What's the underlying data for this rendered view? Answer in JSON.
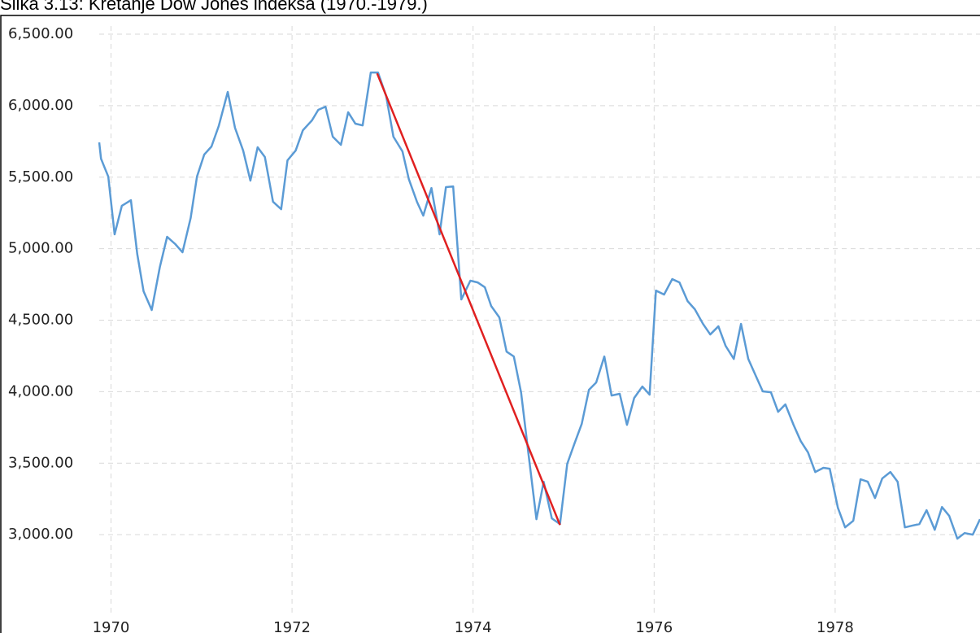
{
  "chart_data": {
    "type": "line",
    "title": "Slika 3.13: Kretanje Dow Jones indeksa (1970.-1979.)",
    "x": [
      1969.87,
      1969.89,
      1969.97,
      1970.04,
      1970.12,
      1970.22,
      1970.29,
      1970.36,
      1970.45,
      1970.54,
      1970.62,
      1970.71,
      1970.79,
      1970.88,
      1970.95,
      1971.03,
      1971.11,
      1971.19,
      1971.29,
      1971.37,
      1971.46,
      1971.54,
      1971.62,
      1971.7,
      1971.79,
      1971.88,
      1971.95,
      1972.04,
      1972.12,
      1972.22,
      1972.29,
      1972.37,
      1972.45,
      1972.54,
      1972.62,
      1972.7,
      1972.78,
      1972.87,
      1972.95,
      1973.04,
      1973.12,
      1973.22,
      1973.29,
      1973.38,
      1973.45,
      1973.54,
      1973.63,
      1973.7,
      1973.78,
      1973.87,
      1973.97,
      1974.05,
      1974.13,
      1974.2,
      1974.29,
      1974.37,
      1974.45,
      1974.53,
      1974.61,
      1974.7,
      1974.78,
      1974.87,
      1974.96,
      1975.04,
      1975.12,
      1975.2,
      1975.28,
      1975.36,
      1975.45,
      1975.53,
      1975.62,
      1975.7,
      1975.78,
      1975.87,
      1975.95,
      1976.02,
      1976.11,
      1976.2,
      1976.28,
      1976.37,
      1976.45,
      1976.54,
      1976.62,
      1976.71,
      1976.79,
      1976.88,
      1976.96,
      1977.04,
      1977.12,
      1977.2,
      1977.29,
      1977.37,
      1977.45,
      1977.54,
      1977.62,
      1977.7,
      1977.78,
      1977.87,
      1977.94,
      1978.03,
      1978.11,
      1978.2,
      1978.28,
      1978.36,
      1978.44,
      1978.52,
      1978.61,
      1978.69,
      1978.77,
      1978.85,
      1978.93,
      1979.01,
      1979.1,
      1979.18,
      1979.26,
      1979.35,
      1979.43,
      1979.52,
      1979.6
    ],
    "series": [
      {
        "color": "#5b9bd5",
        "values": [
          5743,
          5629,
          5504,
          5100,
          5300,
          5339,
          4963,
          4702,
          4571,
          4872,
          5083,
          5032,
          4975,
          5214,
          5504,
          5658,
          5714,
          5857,
          6096,
          5845,
          5686,
          5476,
          5709,
          5641,
          5328,
          5276,
          5618,
          5686,
          5828,
          5897,
          5971,
          5993,
          5783,
          5726,
          5954,
          5874,
          5862,
          6232,
          6232,
          6067,
          5783,
          5680,
          5487,
          5328,
          5231,
          5424,
          5100,
          5430,
          5435,
          4645,
          4776,
          4764,
          4730,
          4599,
          4519,
          4280,
          4246,
          3996,
          3575,
          3108,
          3370,
          3114,
          3074,
          3495,
          3637,
          3774,
          4013,
          4064,
          4246,
          3973,
          3985,
          3768,
          3956,
          4036,
          3979,
          4707,
          4679,
          4787,
          4764,
          4633,
          4576,
          4474,
          4400,
          4457,
          4320,
          4229,
          4474,
          4229,
          4115,
          4002,
          3996,
          3859,
          3911,
          3768,
          3654,
          3575,
          3438,
          3467,
          3461,
          3188,
          3051,
          3097,
          3387,
          3370,
          3256,
          3393,
          3438,
          3370,
          3051,
          3063,
          3074,
          3171,
          3034,
          3193,
          3131,
          2972,
          3011,
          3000,
          3108
        ]
      }
    ],
    "trend_line": {
      "color": "#e02020",
      "x": [
        1972.94,
        1974.96
      ],
      "values": [
        6226,
        3068
      ]
    },
    "xlim": [
      1969.87,
      1979.6
    ],
    "xticks": [
      1970,
      1972,
      1974,
      1976,
      1978
    ],
    "ylim": [
      2500,
      6500
    ],
    "yticks": [
      {
        "value": 3000,
        "label": "3,000.00"
      },
      {
        "value": 3500,
        "label": "3,500.00"
      },
      {
        "value": 4000,
        "label": "4,000.00"
      },
      {
        "value": 4500,
        "label": "4,500.00"
      },
      {
        "value": 5000,
        "label": "5,000.00"
      },
      {
        "value": 5500,
        "label": "5,500.00"
      },
      {
        "value": 6000,
        "label": "6,000.00"
      },
      {
        "value": 6500,
        "label": "6,500.00"
      }
    ],
    "grid": true
  }
}
